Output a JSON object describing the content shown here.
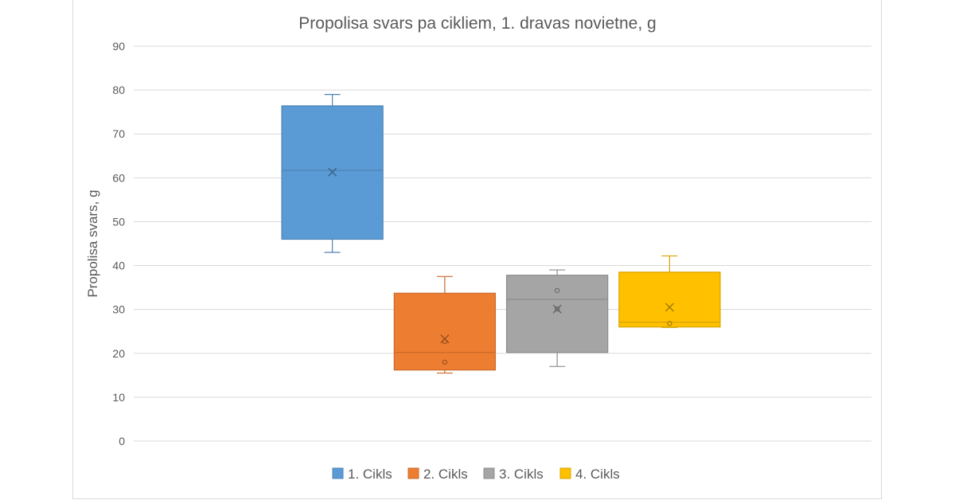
{
  "chart_data": {
    "type": "box",
    "title": "Propolisa svars pa cikliem, 1. dravas novietne, g",
    "ylabel": "Propolisa svars, g",
    "xlabel": "",
    "ylim": [
      0,
      90
    ],
    "yticks": [
      0,
      10,
      20,
      30,
      40,
      50,
      60,
      70,
      80,
      90
    ],
    "grid": true,
    "legend_position": "bottom",
    "series": [
      {
        "name": "1. Cikls",
        "color": "#5b9bd5",
        "whisker_low": 43,
        "q1": 46,
        "median": 61.7,
        "q3": 76.4,
        "whisker_high": 79,
        "mean": 61.3,
        "points": []
      },
      {
        "name": "2. Cikls",
        "color": "#ed7d31",
        "whisker_low": 15.5,
        "q1": 16.2,
        "median": 20.2,
        "q3": 33.7,
        "whisker_high": 37.5,
        "mean": 23.3,
        "points": [
          18,
          22.7
        ]
      },
      {
        "name": "3. Cikls",
        "color": "#a5a5a5",
        "whisker_low": 17,
        "q1": 20.2,
        "median": 32.3,
        "q3": 37.8,
        "whisker_high": 39,
        "mean": 30.1,
        "points": [
          34.3,
          30.1
        ]
      },
      {
        "name": "4. Cikls",
        "color": "#ffc000",
        "whisker_low": 25.9,
        "q1": 26,
        "median": 27.1,
        "q3": 38.5,
        "whisker_high": 42.2,
        "mean": 30.5,
        "points": [
          26.8
        ]
      }
    ]
  }
}
